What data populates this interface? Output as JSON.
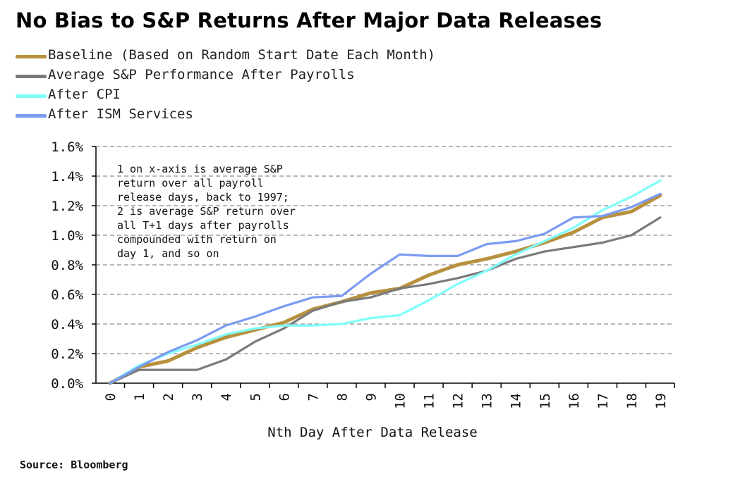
{
  "title": "No Bias to S&P Returns After Major Data Releases",
  "source": "Source: Bloomberg",
  "annotation": "1 on x-axis is average S&P return over all payroll release days, back to 1997; 2 is average S&P return over all T+1 days after payrolls compounded with return on day 1, and so on",
  "colors": {
    "baseline": "#B8913E",
    "payrolls": "#7A7A7A",
    "cpi": "#7FFFFA",
    "ism": "#7B9BF2",
    "grid": "#A0A0A0",
    "axis": "#000000"
  },
  "chart_data": {
    "type": "line",
    "title": "No Bias to S&P Returns After Major Data Releases",
    "xlabel": "Nth Day After Data Release",
    "ylabel": "",
    "x": [
      0,
      1,
      2,
      3,
      4,
      5,
      6,
      7,
      8,
      9,
      10,
      11,
      12,
      13,
      14,
      15,
      16,
      17,
      18,
      19
    ],
    "xlim": [
      0,
      19
    ],
    "ylim": [
      0.0,
      1.6
    ],
    "yticks": [
      "0.0%",
      "0.2%",
      "0.4%",
      "0.6%",
      "0.8%",
      "1.0%",
      "1.2%",
      "1.4%",
      "1.6%"
    ],
    "ytick_values": [
      0.0,
      0.2,
      0.4,
      0.6,
      0.8,
      1.0,
      1.2,
      1.4,
      1.6
    ],
    "grid": true,
    "legend_position": "top-left",
    "series": [
      {
        "key": "baseline",
        "name": "Baseline (Based on Random Start Date Each Month)",
        "values": [
          0.0,
          0.11,
          0.15,
          0.24,
          0.31,
          0.36,
          0.41,
          0.5,
          0.55,
          0.61,
          0.64,
          0.73,
          0.8,
          0.84,
          0.89,
          0.95,
          1.02,
          1.12,
          1.16,
          1.27
        ]
      },
      {
        "key": "payrolls",
        "name": "Average S&P Performance After Payrolls",
        "values": [
          0.0,
          0.09,
          0.09,
          0.09,
          0.16,
          0.28,
          0.37,
          0.49,
          0.55,
          0.58,
          0.64,
          0.67,
          0.71,
          0.76,
          0.84,
          0.89,
          0.92,
          0.95,
          1.0,
          1.12
        ]
      },
      {
        "key": "cpi",
        "name": "After CPI",
        "values": [
          0.0,
          0.12,
          0.2,
          0.26,
          0.33,
          0.37,
          0.39,
          0.39,
          0.4,
          0.44,
          0.46,
          0.56,
          0.67,
          0.76,
          0.87,
          0.96,
          1.05,
          1.17,
          1.26,
          1.37
        ]
      },
      {
        "key": "ism",
        "name": "After ISM Services",
        "values": [
          0.0,
          0.11,
          0.21,
          0.29,
          0.39,
          0.45,
          0.52,
          0.58,
          0.59,
          0.74,
          0.87,
          0.86,
          0.86,
          0.94,
          0.96,
          1.01,
          1.12,
          1.13,
          1.19,
          1.28
        ]
      }
    ]
  }
}
